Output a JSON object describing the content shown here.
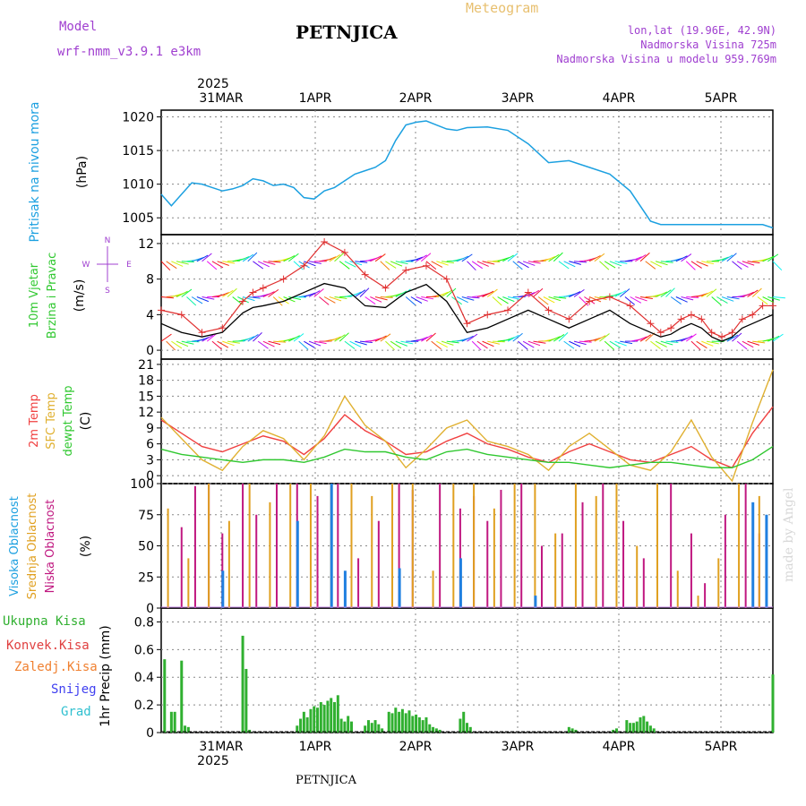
{
  "header": {
    "title": "PETNJICA",
    "subtitle": "Meteogram",
    "model_label": "Model",
    "model_name": "wrf-nmm_v3.9.1 e3km",
    "coords": "lon,lat (19.96E, 42.9N)",
    "altitude": "Nadmorska Visina 725m",
    "model_altitude": "Nadmorska Visina u modelu 959.769m",
    "footer": "PETNJICA",
    "credit": "made by Angel"
  },
  "colors": {
    "pressure": "#1ca0e0",
    "temp2m": "#f04040",
    "sfc": "#e0b030",
    "dewpt": "#30c830",
    "high": "#2080e0",
    "mid": "#e0a020",
    "low": "#c01880",
    "precip": "#30b030",
    "conv": "#e04040",
    "freezing": "#f08030",
    "snow": "#4040f0",
    "grad": "#30c0d0",
    "axis": "#000000",
    "grid": "#888888"
  },
  "time_axis": {
    "year_top": "2025",
    "year_bottom": "2025",
    "days": [
      "31MAR",
      "1APR",
      "2APR",
      "3APR",
      "4APR",
      "5APR"
    ]
  },
  "chart_data": [
    {
      "type": "line",
      "title": "Pritisak na nivou mora",
      "ylabel": "(hPa)",
      "ylim": [
        1002.5,
        1021
      ],
      "yticks": [
        "1005",
        "1010",
        "1015",
        "1020"
      ],
      "x_hours": [
        0,
        3,
        6,
        9,
        12,
        15,
        18,
        21,
        24,
        27,
        30,
        33,
        36,
        39,
        42,
        45,
        48,
        51,
        54,
        57,
        60,
        63,
        66,
        69,
        72,
        75,
        78,
        81,
        84,
        87,
        90,
        96,
        102,
        108,
        114,
        120,
        126,
        132,
        138,
        144,
        147,
        150,
        153,
        156,
        159,
        162,
        165,
        168,
        171,
        174,
        177,
        180
      ],
      "series": [
        {
          "name": "pressure",
          "values": [
            1008.5,
            1006.8,
            1008.5,
            1010.2,
            1010.0,
            1009.5,
            1009.0,
            1009.3,
            1009.8,
            1010.8,
            1010.5,
            1009.8,
            1010.0,
            1009.5,
            1008.0,
            1007.8,
            1009.0,
            1009.5,
            1010.5,
            1011.5,
            1012.0,
            1012.5,
            1013.5,
            1016.5,
            1018.8,
            1019.2,
            1019.4,
            1018.8,
            1018.2,
            1018.0,
            1018.4,
            1018.5,
            1018.0,
            1016.0,
            1013.2,
            1013.5,
            1012.5,
            1011.5,
            1009.0,
            1004.5,
            1004.0,
            1004.0,
            1004.0,
            1004.0,
            1004.0,
            1004.0,
            1004.0,
            1004.0,
            1004.0,
            1004.0,
            1004.0,
            1003.5
          ]
        }
      ]
    },
    {
      "type": "line",
      "title": "10m Vjetar Brzina i Pravac",
      "ylabel": "(m/s)",
      "ylim": [
        -1,
        13
      ],
      "yticks": [
        "0",
        "4",
        "8",
        "12"
      ],
      "compass": [
        "N",
        "S",
        "W",
        "E"
      ],
      "x_hours": [
        0,
        6,
        12,
        18,
        24,
        27,
        30,
        36,
        42,
        48,
        54,
        60,
        66,
        72,
        78,
        84,
        90,
        96,
        102,
        108,
        114,
        120,
        126,
        132,
        138,
        144,
        147,
        150,
        153,
        156,
        159,
        162,
        165,
        168,
        171,
        174,
        177,
        180
      ],
      "series": [
        {
          "name": "wind_speed",
          "values": [
            3.0,
            2.0,
            1.5,
            2.0,
            4.2,
            4.8,
            5.0,
            5.5,
            6.5,
            7.5,
            7.0,
            5.0,
            4.8,
            6.5,
            7.4,
            5.5,
            2.0,
            2.5,
            3.5,
            4.5,
            3.5,
            2.5,
            3.5,
            4.5,
            3.0,
            2.0,
            1.5,
            1.8,
            2.5,
            3.0,
            2.5,
            1.5,
            1.0,
            1.5,
            2.5,
            3.0,
            3.5,
            4.0
          ]
        },
        {
          "name": "gust",
          "values": [
            4.5,
            4.0,
            2.0,
            2.5,
            5.5,
            6.5,
            7.0,
            8.0,
            9.5,
            12.2,
            11.0,
            8.5,
            7.0,
            9.0,
            9.5,
            8.0,
            3.0,
            4.0,
            4.5,
            6.5,
            4.5,
            3.5,
            5.5,
            6.0,
            5.0,
            3.0,
            2.0,
            2.5,
            3.5,
            4.0,
            3.5,
            2.0,
            1.5,
            2.0,
            3.5,
            4.0,
            5.0,
            5.0
          ]
        }
      ]
    },
    {
      "type": "line",
      "title": "2m Temp / SFC Temp / dewpt Temp",
      "ylabel": "(C)",
      "ylim": [
        -1.5,
        22
      ],
      "yticks": [
        "0",
        "3",
        "6",
        "9",
        "12",
        "15",
        "18",
        "21"
      ],
      "x_hours": [
        0,
        6,
        12,
        18,
        24,
        30,
        36,
        42,
        48,
        54,
        60,
        66,
        72,
        78,
        84,
        90,
        96,
        102,
        108,
        114,
        120,
        126,
        132,
        138,
        144,
        150,
        156,
        162,
        168,
        174,
        180
      ],
      "series": [
        {
          "name": "2m Temp",
          "values": [
            10.5,
            8.0,
            5.5,
            4.5,
            6.0,
            7.5,
            6.5,
            4.0,
            7.0,
            11.5,
            8.5,
            6.5,
            4.0,
            4.5,
            6.5,
            8.0,
            6.0,
            5.0,
            3.5,
            2.5,
            4.5,
            6.0,
            4.5,
            3.0,
            2.5,
            4.0,
            5.5,
            3.0,
            1.5,
            8.0,
            13.0
          ]
        },
        {
          "name": "SFC Temp",
          "values": [
            11.0,
            7.0,
            3.0,
            1.0,
            5.5,
            8.5,
            7.0,
            3.0,
            7.5,
            15.0,
            9.5,
            6.5,
            1.5,
            5.0,
            9.0,
            10.5,
            6.5,
            5.5,
            4.0,
            1.0,
            5.5,
            8.0,
            5.0,
            2.0,
            1.0,
            4.5,
            10.5,
            3.5,
            -1.0,
            10.0,
            20.0
          ]
        },
        {
          "name": "dewpt Temp",
          "values": [
            5.0,
            4.0,
            3.5,
            3.0,
            2.5,
            3.0,
            3.0,
            2.5,
            3.5,
            5.0,
            4.5,
            4.5,
            3.5,
            3.0,
            4.5,
            5.0,
            4.0,
            3.5,
            3.0,
            2.5,
            2.5,
            2.0,
            1.5,
            2.0,
            2.5,
            2.5,
            2.0,
            1.5,
            1.5,
            3.0,
            5.5
          ]
        }
      ]
    },
    {
      "type": "bar",
      "title": "Visoka / Srednja / Niska Oblacnost",
      "ylabel": "(%)",
      "ylim": [
        0,
        100
      ],
      "yticks": [
        "0",
        "25",
        "50",
        "75",
        "100"
      ],
      "series": [
        {
          "name": "Niska Oblacnost",
          "x_hours": [
            6,
            10,
            14,
            18,
            24,
            28,
            34,
            40,
            46,
            52,
            58,
            64,
            70,
            74,
            82,
            88,
            92,
            96,
            100,
            106,
            112,
            118,
            124,
            130,
            136,
            142,
            150,
            156,
            160,
            166,
            172,
            176
          ],
          "values": [
            65,
            98,
            100,
            60,
            100,
            75,
            100,
            100,
            90,
            100,
            40,
            70,
            100,
            95,
            100,
            80,
            90,
            70,
            95,
            100,
            50,
            60,
            85,
            100,
            70,
            40,
            100,
            60,
            20,
            75,
            100,
            60
          ]
        },
        {
          "name": "Srednja Oblacnost",
          "x_hours": [
            2,
            8,
            14,
            20,
            26,
            32,
            38,
            44,
            50,
            56,
            62,
            68,
            74,
            80,
            86,
            92,
            98,
            104,
            110,
            116,
            122,
            128,
            134,
            140,
            146,
            152,
            158,
            164,
            170,
            176
          ],
          "values": [
            80,
            40,
            100,
            70,
            100,
            85,
            100,
            100,
            100,
            100,
            90,
            100,
            100,
            30,
            100,
            100,
            80,
            100,
            100,
            60,
            100,
            90,
            100,
            50,
            100,
            30,
            10,
            40,
            100,
            90
          ]
        },
        {
          "name": "Visoka Oblacnost",
          "x_hours": [
            18,
            40,
            50,
            54,
            70,
            88,
            110,
            174,
            178
          ],
          "values": [
            30,
            70,
            100,
            30,
            32,
            40,
            10,
            85,
            75
          ]
        }
      ]
    },
    {
      "type": "bar",
      "title": "1hr Precip",
      "ylabel": "1hr Precip (mm)",
      "ylim": [
        0,
        0.9
      ],
      "yticks": [
        "0",
        "0.2",
        "0.4",
        "0.6",
        "0.8"
      ],
      "legend": [
        "Ukupna Kisa",
        "Konvek.Kisa",
        "Zaledj.Kisa",
        "Snijeg",
        "Grad"
      ],
      "x_hours": [
        1,
        3,
        4,
        6,
        7,
        8,
        24,
        25,
        26,
        40,
        41,
        42,
        43,
        44,
        45,
        46,
        47,
        48,
        49,
        50,
        51,
        52,
        53,
        54,
        55,
        56,
        60,
        61,
        62,
        63,
        64,
        65,
        67,
        68,
        69,
        70,
        71,
        72,
        73,
        74,
        75,
        76,
        77,
        78,
        79,
        80,
        81,
        82,
        88,
        89,
        90,
        91,
        120,
        121,
        122,
        133,
        134,
        137,
        138,
        139,
        140,
        141,
        142,
        143,
        144,
        145,
        180
      ],
      "values": [
        0.53,
        0.15,
        0.15,
        0.52,
        0.05,
        0.04,
        0.7,
        0.46,
        0.02,
        0.05,
        0.1,
        0.15,
        0.11,
        0.17,
        0.19,
        0.18,
        0.22,
        0.2,
        0.23,
        0.25,
        0.22,
        0.27,
        0.1,
        0.08,
        0.12,
        0.08,
        0.05,
        0.09,
        0.07,
        0.09,
        0.06,
        0.03,
        0.15,
        0.14,
        0.18,
        0.15,
        0.17,
        0.14,
        0.16,
        0.12,
        0.13,
        0.11,
        0.09,
        0.11,
        0.06,
        0.04,
        0.03,
        0.02,
        0.1,
        0.15,
        0.07,
        0.04,
        0.04,
        0.03,
        0.02,
        0.02,
        0.03,
        0.09,
        0.07,
        0.07,
        0.08,
        0.11,
        0.12,
        0.08,
        0.05,
        0.03,
        0.42
      ]
    }
  ]
}
